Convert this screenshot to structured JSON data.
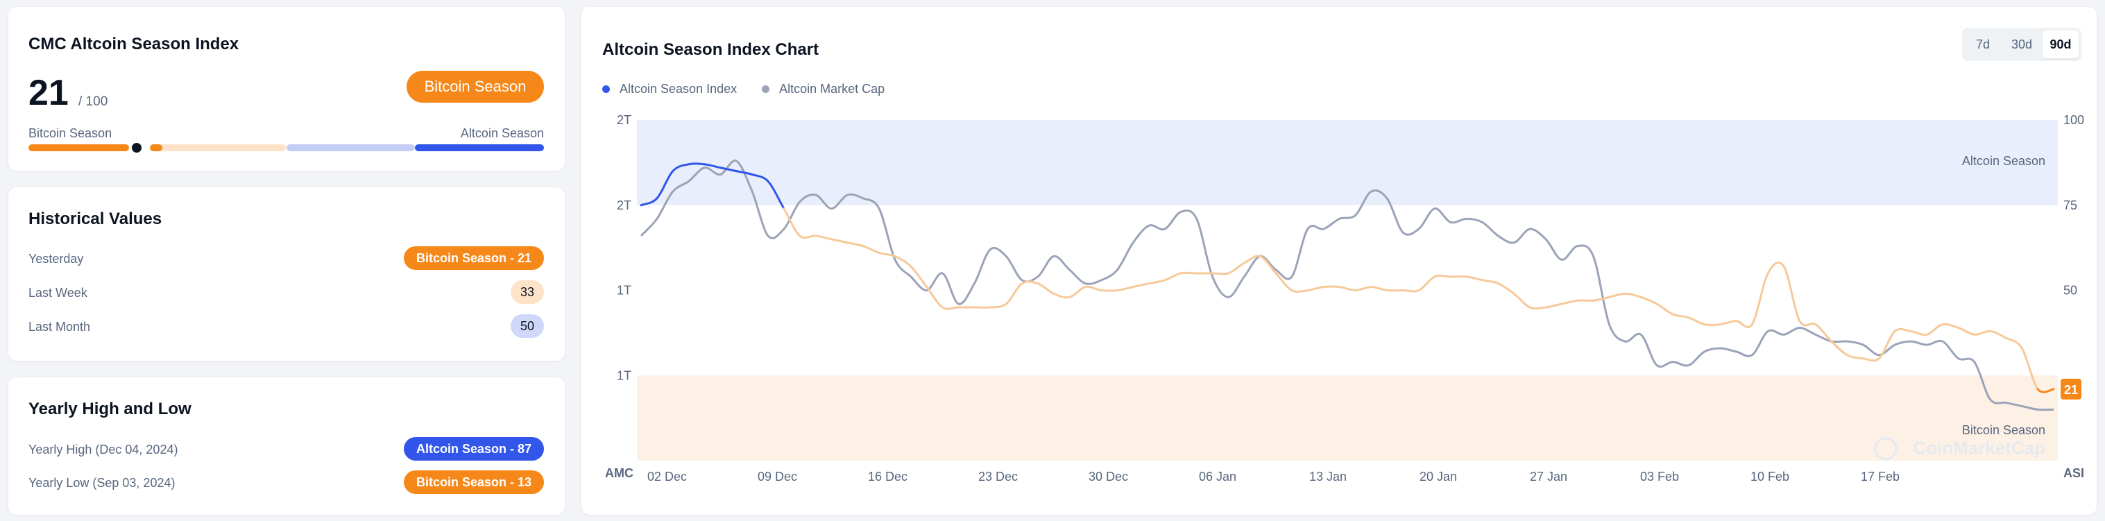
{
  "index_card": {
    "title": "CMC Altcoin Season Index",
    "score": "21",
    "max": "/ 100",
    "season_label": "Bitcoin Season",
    "scale_left": "Bitcoin Season",
    "scale_right": "Altcoin Season",
    "gauge_value": 21,
    "colors": {
      "bitcoin": "#f68819",
      "bitcoin_light": "#fde3c8",
      "altcoin_light": "#c4cdf6",
      "altcoin": "#3156e9"
    }
  },
  "historical": {
    "title": "Historical Values",
    "rows": [
      {
        "label": "Yesterday",
        "value": "Bitcoin Season - 21"
      },
      {
        "label": "Last Week",
        "value": "33"
      },
      {
        "label": "Last Month",
        "value": "50"
      }
    ]
  },
  "yearly": {
    "title": "Yearly High and Low",
    "rows": [
      {
        "label": "Yearly High (Dec 04, 2024)",
        "value": "Altcoin Season - 87"
      },
      {
        "label": "Yearly Low (Sep 03, 2024)",
        "value": "Bitcoin Season - 13"
      }
    ]
  },
  "chart_card": {
    "title": "Altcoin Season Index Chart",
    "ranges": [
      "7d",
      "30d",
      "90d"
    ],
    "active_range": "90d",
    "legend": [
      {
        "label": "Altcoin Season Index",
        "color": "#3156e9"
      },
      {
        "label": "Altcoin Market Cap",
        "color": "#9aa3b8"
      }
    ],
    "zone_labels": {
      "altcoin": "Altcoin Season",
      "bitcoin": "Bitcoin Season"
    },
    "left_axis_title": "AMC",
    "right_axis_title": "ASI",
    "current_value_badge": "21",
    "watermark": "CoinMarketCap"
  },
  "chart_data": {
    "type": "line",
    "x_ticks": [
      "02 Dec",
      "09 Dec",
      "16 Dec",
      "23 Dec",
      "30 Dec",
      "06 Jan",
      "13 Jan",
      "20 Jan",
      "27 Jan",
      "03 Feb",
      "10 Feb",
      "17 Feb"
    ],
    "y_left_ticks": [
      "2T",
      "2T",
      "1T",
      "1T"
    ],
    "y_right_ticks": [
      "100",
      "75",
      "50"
    ],
    "y_right_range": [
      0,
      100
    ],
    "zones": [
      {
        "name": "Altcoin Season",
        "from": 75,
        "to": 100,
        "color": "#e9eefc"
      },
      {
        "name": "Bitcoin Season",
        "from": 0,
        "to": 25,
        "color": "#fdf1e6"
      }
    ],
    "series": [
      {
        "name": "Altcoin Season Index",
        "axis": "right",
        "x": [
          0,
          1,
          2,
          3,
          4,
          5,
          6,
          7,
          8,
          9,
          10,
          11,
          12,
          13,
          14,
          15,
          16,
          17,
          18,
          19,
          20,
          21,
          22,
          23,
          24,
          25,
          26,
          27,
          28,
          29,
          30,
          31,
          32,
          33,
          34,
          35,
          36,
          37,
          38,
          39,
          40,
          41,
          42,
          43,
          44,
          45,
          46,
          47,
          48,
          49,
          50,
          51,
          52,
          53,
          54,
          55,
          56,
          57,
          58,
          59,
          60,
          61,
          62,
          63,
          64,
          65,
          66,
          67,
          68,
          69,
          70,
          71,
          72,
          73,
          74,
          75,
          76,
          77,
          78,
          79,
          80,
          81,
          82,
          83,
          84,
          85,
          86,
          87,
          88,
          89
        ],
        "values": [
          75,
          77,
          85,
          87,
          87,
          86,
          85,
          84,
          82,
          74,
          66,
          66,
          65,
          64,
          63,
          61,
          60,
          57,
          51,
          45,
          45,
          45,
          45,
          46,
          52,
          52,
          49,
          48,
          51,
          50,
          50,
          51,
          52,
          53,
          55,
          55,
          55,
          55,
          58,
          60,
          55,
          50,
          50,
          51,
          51,
          50,
          51,
          50,
          50,
          50,
          54,
          54,
          54,
          53,
          52,
          49,
          45,
          45,
          46,
          47,
          47,
          48,
          49,
          48,
          46,
          43,
          42,
          40,
          40,
          41,
          40,
          55,
          57,
          41,
          40,
          35,
          31,
          30,
          30,
          38,
          38,
          37,
          40,
          39,
          37,
          38,
          36,
          33,
          21,
          21
        ],
        "colors": {
          "altcoin": "#3156e9",
          "neutral": "#f6c99a",
          "bitcoin": "#f68819"
        }
      },
      {
        "name": "Altcoin Market Cap",
        "axis": "right-scaled",
        "x": [
          0,
          1,
          2,
          3,
          4,
          5,
          6,
          7,
          8,
          9,
          10,
          11,
          12,
          13,
          14,
          15,
          16,
          17,
          18,
          19,
          20,
          21,
          22,
          23,
          24,
          25,
          26,
          27,
          28,
          29,
          30,
          31,
          32,
          33,
          34,
          35,
          36,
          37,
          38,
          39,
          40,
          41,
          42,
          43,
          44,
          45,
          46,
          47,
          48,
          49,
          50,
          51,
          52,
          53,
          54,
          55,
          56,
          57,
          58,
          59,
          60,
          61,
          62,
          63,
          64,
          65,
          66,
          67,
          68,
          69,
          70,
          71,
          72,
          73,
          74,
          75,
          76,
          77,
          78,
          79,
          80,
          81,
          82,
          83,
          84,
          85,
          86,
          87,
          88,
          89
        ],
        "values": [
          66,
          71,
          79,
          82,
          86,
          84,
          88,
          79,
          66,
          68,
          76,
          78,
          74,
          78,
          77,
          74,
          59,
          54,
          50,
          55,
          46,
          52,
          62,
          60,
          53,
          54,
          60,
          56,
          52,
          53,
          56,
          64,
          69,
          68,
          73,
          71,
          54,
          48,
          54,
          60,
          56,
          54,
          68,
          68,
          71,
          72,
          79,
          77,
          67,
          68,
          74,
          70,
          71,
          70,
          66,
          64,
          68,
          65,
          59,
          63,
          60,
          40,
          35,
          37,
          28,
          29,
          28,
          32,
          33,
          32,
          31,
          38,
          37,
          39,
          37,
          35,
          35,
          34,
          31,
          34,
          35,
          34,
          35,
          30,
          29,
          18,
          17,
          16,
          15,
          15
        ],
        "color": "#9aa3b8"
      }
    ],
    "legend_position": "top-left",
    "grid": false
  }
}
